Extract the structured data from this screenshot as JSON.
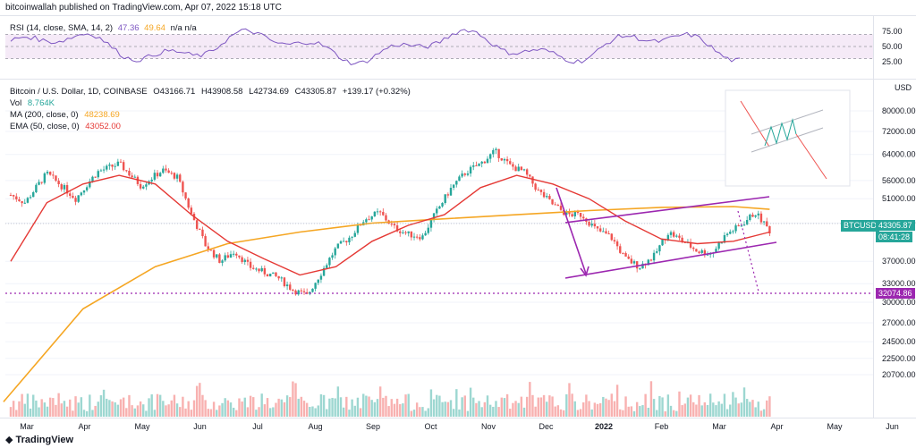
{
  "header": {
    "published_by": "bitcoinwallah published on TradingView.com, Apr 07, 2022 15:18 UTC"
  },
  "rsi": {
    "name": "RSI (14, close, SMA, 14, 2)",
    "value1": "47.36",
    "value2": "49.64",
    "tail": "n/a n/a",
    "axis_labels": [
      "75.00",
      "50.00",
      "25.00"
    ],
    "upper": 70,
    "lower": 30,
    "mid": 50
  },
  "main": {
    "symbol_line": "Bitcoin / U.S. Dollar, 1D, COINBASE",
    "o": "O43166.71",
    "h": "H43908.58",
    "l": "L42734.69",
    "c": "C43305.87",
    "change": "+139.17 (+0.32%)",
    "vol_label": "Vol",
    "vol_value": "8.764K",
    "ma_label": "MA (200, close, 0)",
    "ma_value": "48238.69",
    "ema_label": "EMA (50, close, 0)",
    "ema_value": "43052.00",
    "ticker": "BTCUSD",
    "price_badge": "43305.87",
    "timer_badge": "08:41:28",
    "target_badge": "32074.86",
    "currency": "USD"
  },
  "colors": {
    "up": "#26a69a",
    "down": "#ef5350",
    "ma": "#f5a623",
    "ema": "#e53935",
    "channel": "#9c27b0",
    "rsi_line": "#7e57c2",
    "rsi_band": "#f3e5f5"
  },
  "logo_text": "TradingView",
  "chart_data": {
    "type": "candlestick",
    "title": "Bitcoin / U.S. Dollar, 1D, COINBASE",
    "y_axis_labels": [
      80000,
      72000,
      64000,
      56000,
      51000,
      45000,
      37000,
      33000,
      30000,
      27000,
      24500,
      22500,
      20700
    ],
    "x_axis_labels": [
      "Mar",
      "Apr",
      "May",
      "Jun",
      "Jul",
      "Aug",
      "Sep",
      "Oct",
      "Nov",
      "Dec",
      "2022",
      "Feb",
      "Mar",
      "Apr",
      "May",
      "Jun"
    ],
    "price_path": [
      [
        0,
        52000
      ],
      [
        0.02,
        50000
      ],
      [
        0.05,
        58000
      ],
      [
        0.09,
        51000
      ],
      [
        0.12,
        58500
      ],
      [
        0.15,
        61000
      ],
      [
        0.18,
        54500
      ],
      [
        0.21,
        59000
      ],
      [
        0.23,
        57000
      ],
      [
        0.25,
        47000
      ],
      [
        0.27,
        40000
      ],
      [
        0.29,
        37000
      ],
      [
        0.31,
        39000
      ],
      [
        0.33,
        36000
      ],
      [
        0.35,
        35000
      ],
      [
        0.37,
        34000
      ],
      [
        0.39,
        32000
      ],
      [
        0.41,
        31000
      ],
      [
        0.43,
        35000
      ],
      [
        0.45,
        39500
      ],
      [
        0.47,
        42000
      ],
      [
        0.49,
        46000
      ],
      [
        0.51,
        47500
      ],
      [
        0.53,
        44000
      ],
      [
        0.55,
        42500
      ],
      [
        0.57,
        42000
      ],
      [
        0.59,
        48000
      ],
      [
        0.61,
        54000
      ],
      [
        0.63,
        58500
      ],
      [
        0.65,
        61000
      ],
      [
        0.67,
        65000
      ],
      [
        0.69,
        60500
      ],
      [
        0.71,
        58500
      ],
      [
        0.73,
        53000
      ],
      [
        0.75,
        49500
      ],
      [
        0.77,
        47000
      ],
      [
        0.79,
        47000
      ],
      [
        0.81,
        43500
      ],
      [
        0.83,
        42000
      ],
      [
        0.85,
        37500
      ],
      [
        0.87,
        36000
      ],
      [
        0.89,
        38000
      ],
      [
        0.91,
        43000
      ],
      [
        0.93,
        41000
      ],
      [
        0.95,
        39000
      ],
      [
        0.97,
        38500
      ],
      [
        0.99,
        42500
      ],
      [
        1.01,
        44500
      ],
      [
        1.03,
        47500
      ],
      [
        1.05,
        43300
      ]
    ],
    "ma200": "48238.69",
    "ema50": "43052.00",
    "last_price": "43305.87",
    "target": "32074.86"
  }
}
